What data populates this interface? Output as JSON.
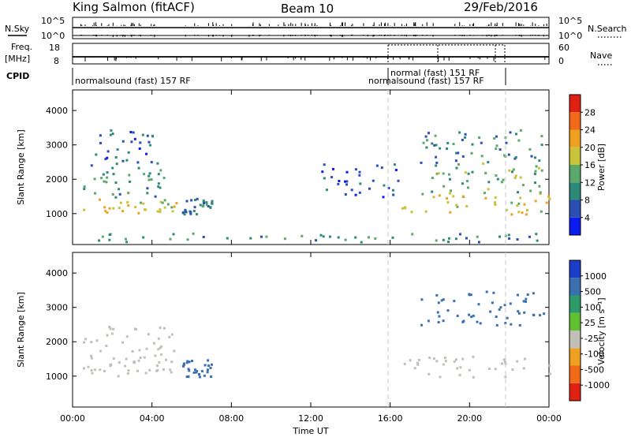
{
  "header": {
    "station": "King Salmon (fitACF)",
    "beam": "Beam 10",
    "date": "29/Feb/2016"
  },
  "top_panels": {
    "nsky_label": "N.Sky",
    "nsearch_label": "N.Search",
    "nsky_ticks": [
      "10^5",
      "10^0"
    ],
    "nsearch_ticks": [
      "10^5",
      "10^0"
    ],
    "freq_label": "Freq.",
    "freq_unit": "[MHz]",
    "freq_ticks": [
      "18",
      "8"
    ],
    "nave_label": "Nave",
    "nave_ticks": [
      "60",
      "0"
    ],
    "cpid_label": "CPID",
    "cpid_segments": [
      {
        "label": "normalsound (fast) 157 RF",
        "start_h": 0,
        "end_h": 16
      },
      {
        "label": "normal (fast) 151 RF",
        "start_h": 16,
        "end_h": 22
      },
      {
        "label": "normalsound (fast) 157 RF",
        "start_h": 22,
        "end_h": 24
      }
    ]
  },
  "chart_data": [
    {
      "type": "heatmap",
      "title": "",
      "xlabel": "",
      "ylabel": "Slant Range [km]",
      "xlim": [
        0,
        24
      ],
      "ylim": [
        100,
        4600
      ],
      "yticks": [
        1000,
        2000,
        3000,
        4000
      ],
      "colorbar_label": "Power [dB]",
      "colorbar_ticks": [
        4,
        8,
        12,
        16,
        20,
        24,
        28
      ],
      "colorbar_range": [
        0,
        30
      ],
      "colors": [
        "#0a1cf0",
        "#2a4fb5",
        "#2e8a78",
        "#5aa86a",
        "#c9c33a",
        "#f0a020",
        "#f06a18",
        "#e02010"
      ],
      "scatter_regions": [
        {
          "t": [
            0.5,
            5.2
          ],
          "r": [
            1000,
            1500
          ],
          "value": 18
        },
        {
          "t": [
            0.5,
            5.2
          ],
          "r": [
            1500,
            2500
          ],
          "value": 10
        },
        {
          "t": [
            1.0,
            4.0
          ],
          "r": [
            2500,
            3500
          ],
          "value": 6
        },
        {
          "t": [
            5.5,
            7.0
          ],
          "r": [
            1000,
            1500
          ],
          "value": 8
        },
        {
          "t": [
            12.5,
            16.5
          ],
          "r": [
            1500,
            2500
          ],
          "value": 5
        },
        {
          "t": [
            16.5,
            24.0
          ],
          "r": [
            1000,
            1600
          ],
          "value": 18
        },
        {
          "t": [
            17.5,
            24.0
          ],
          "r": [
            1600,
            2500
          ],
          "value": 12
        },
        {
          "t": [
            17.5,
            24.0
          ],
          "r": [
            2500,
            3500
          ],
          "value": 10
        },
        {
          "t": [
            0.0,
            24.0
          ],
          "r": [
            200,
            450
          ],
          "value": 10
        }
      ]
    },
    {
      "type": "heatmap",
      "title": "",
      "xlabel": "Time UT",
      "ylabel": "Slant Range [km]",
      "xlim": [
        0,
        24
      ],
      "ylim": [
        100,
        4600
      ],
      "yticks": [
        1000,
        2000,
        3000,
        4000
      ],
      "xticks": [
        "00:00",
        "04:00",
        "08:00",
        "12:00",
        "16:00",
        "20:00",
        "00:00"
      ],
      "colorbar_label": "Velocity [m s⁻¹]",
      "colorbar_ticks": [
        "1000",
        "500",
        "100",
        "25",
        "-25",
        "-100",
        "-500",
        "-1000"
      ],
      "colors": [
        "#1a3ec8",
        "#3a6fb0",
        "#2e9a6a",
        "#60c030",
        "#c0c0b8",
        "#f0a020",
        "#f06a18",
        "#e02010"
      ],
      "scatter_regions": [
        {
          "t": [
            0.5,
            5.2
          ],
          "r": [
            1000,
            1500
          ],
          "value": 0
        },
        {
          "t": [
            0.5,
            5.2
          ],
          "r": [
            1500,
            2500
          ],
          "value": 0
        },
        {
          "t": [
            5.5,
            7.0
          ],
          "r": [
            1000,
            1500
          ],
          "value": 150
        },
        {
          "t": [
            16.5,
            24.0
          ],
          "r": [
            1000,
            1600
          ],
          "value": 0
        },
        {
          "t": [
            17.5,
            24.0
          ],
          "r": [
            2500,
            3500
          ],
          "value": 300
        }
      ]
    }
  ]
}
